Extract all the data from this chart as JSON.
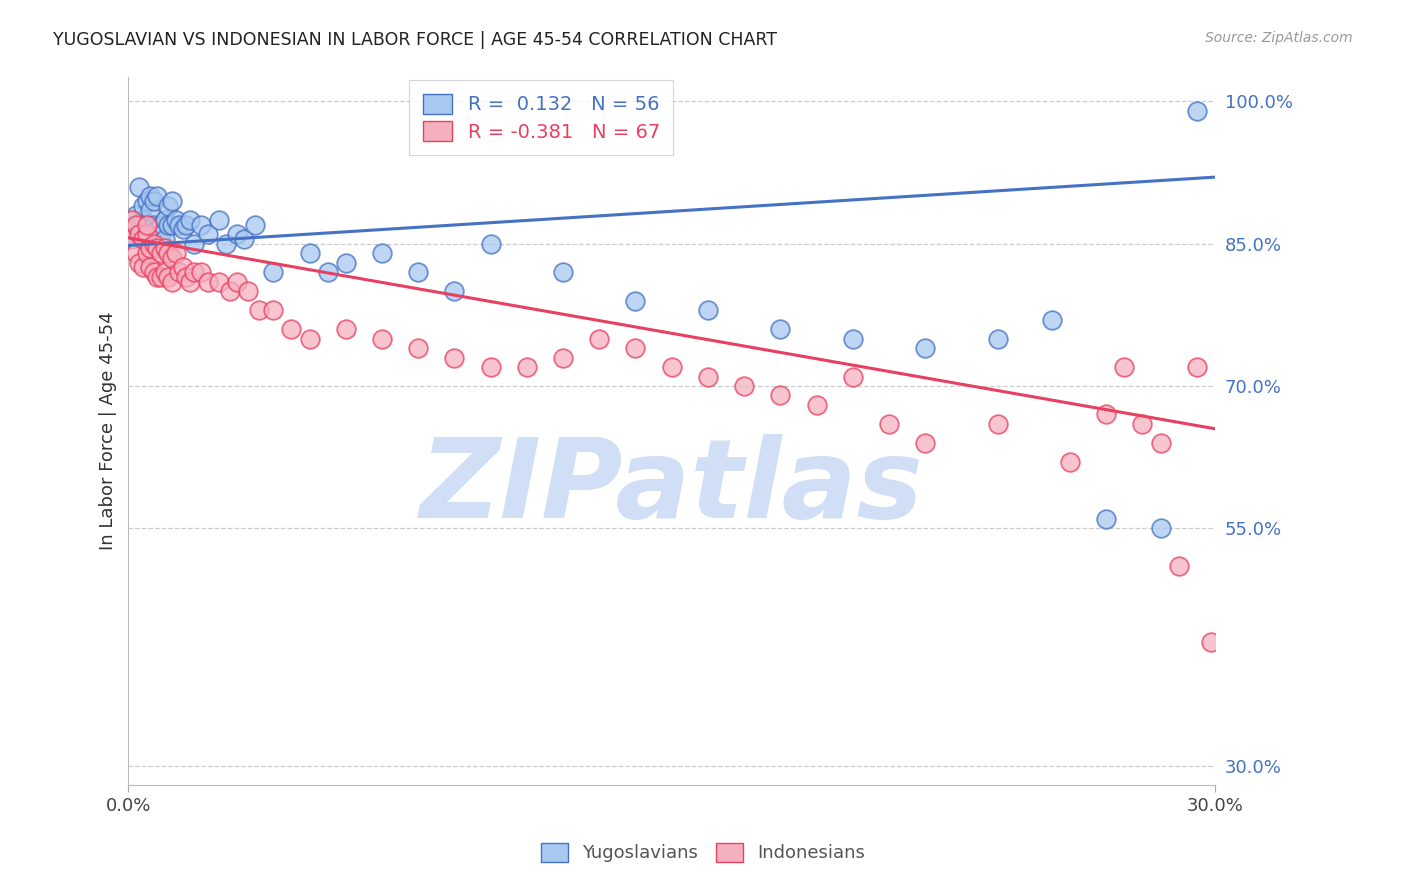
{
  "title": "YUGOSLAVIAN VS INDONESIAN IN LABOR FORCE | AGE 45-54 CORRELATION CHART",
  "source": "Source: ZipAtlas.com",
  "ylabel": "In Labor Force | Age 45-54",
  "xlim": [
    0.0,
    0.3
  ],
  "ylim": [
    0.28,
    1.025
  ],
  "yticks": [
    0.3,
    0.55,
    0.7,
    0.85,
    1.0
  ],
  "ytick_labels": [
    "30.0%",
    "55.0%",
    "70.0%",
    "85.0%",
    "100.0%"
  ],
  "xticks": [
    0.0,
    0.3
  ],
  "xtick_labels": [
    "0.0%",
    "30.0%"
  ],
  "blue_R": 0.132,
  "blue_N": 56,
  "pink_R": -0.381,
  "pink_N": 67,
  "blue_color": "#A8C8F0",
  "pink_color": "#F5B0C0",
  "blue_line_color": "#4472C4",
  "pink_line_color": "#E84060",
  "watermark": "ZIPatlas",
  "watermark_color": "#D0DFF5",
  "background_color": "#FFFFFF",
  "blue_x": [
    0.001,
    0.002,
    0.002,
    0.003,
    0.003,
    0.004,
    0.004,
    0.005,
    0.005,
    0.005,
    0.006,
    0.006,
    0.007,
    0.007,
    0.008,
    0.008,
    0.009,
    0.009,
    0.01,
    0.01,
    0.011,
    0.011,
    0.012,
    0.012,
    0.013,
    0.014,
    0.015,
    0.016,
    0.017,
    0.018,
    0.02,
    0.022,
    0.025,
    0.027,
    0.03,
    0.032,
    0.035,
    0.04,
    0.05,
    0.055,
    0.06,
    0.07,
    0.08,
    0.09,
    0.1,
    0.12,
    0.14,
    0.16,
    0.18,
    0.2,
    0.22,
    0.24,
    0.255,
    0.27,
    0.285,
    0.295
  ],
  "blue_y": [
    0.86,
    0.87,
    0.88,
    0.865,
    0.91,
    0.875,
    0.89,
    0.85,
    0.87,
    0.895,
    0.885,
    0.9,
    0.87,
    0.895,
    0.865,
    0.9,
    0.87,
    0.86,
    0.875,
    0.855,
    0.87,
    0.89,
    0.87,
    0.895,
    0.875,
    0.87,
    0.865,
    0.87,
    0.875,
    0.85,
    0.87,
    0.86,
    0.875,
    0.85,
    0.86,
    0.855,
    0.87,
    0.82,
    0.84,
    0.82,
    0.83,
    0.84,
    0.82,
    0.8,
    0.85,
    0.82,
    0.79,
    0.78,
    0.76,
    0.75,
    0.74,
    0.75,
    0.77,
    0.56,
    0.55,
    0.99
  ],
  "pink_x": [
    0.001,
    0.001,
    0.002,
    0.002,
    0.003,
    0.003,
    0.004,
    0.004,
    0.005,
    0.005,
    0.005,
    0.006,
    0.006,
    0.007,
    0.007,
    0.008,
    0.008,
    0.009,
    0.009,
    0.01,
    0.01,
    0.011,
    0.011,
    0.012,
    0.012,
    0.013,
    0.014,
    0.015,
    0.016,
    0.017,
    0.018,
    0.02,
    0.022,
    0.025,
    0.028,
    0.03,
    0.033,
    0.036,
    0.04,
    0.045,
    0.05,
    0.06,
    0.07,
    0.08,
    0.09,
    0.1,
    0.11,
    0.12,
    0.13,
    0.14,
    0.15,
    0.16,
    0.17,
    0.18,
    0.19,
    0.2,
    0.21,
    0.22,
    0.24,
    0.26,
    0.27,
    0.275,
    0.28,
    0.285,
    0.29,
    0.295,
    0.299
  ],
  "pink_y": [
    0.875,
    0.855,
    0.87,
    0.84,
    0.86,
    0.83,
    0.855,
    0.825,
    0.86,
    0.84,
    0.87,
    0.845,
    0.825,
    0.85,
    0.82,
    0.845,
    0.815,
    0.84,
    0.815,
    0.845,
    0.82,
    0.84,
    0.815,
    0.835,
    0.81,
    0.84,
    0.82,
    0.825,
    0.815,
    0.81,
    0.82,
    0.82,
    0.81,
    0.81,
    0.8,
    0.81,
    0.8,
    0.78,
    0.78,
    0.76,
    0.75,
    0.76,
    0.75,
    0.74,
    0.73,
    0.72,
    0.72,
    0.73,
    0.75,
    0.74,
    0.72,
    0.71,
    0.7,
    0.69,
    0.68,
    0.71,
    0.66,
    0.64,
    0.66,
    0.62,
    0.67,
    0.72,
    0.66,
    0.64,
    0.51,
    0.72,
    0.43
  ],
  "blue_trend_x": [
    0.0,
    0.3
  ],
  "blue_trend_y": [
    0.848,
    0.92
  ],
  "pink_trend_x": [
    0.0,
    0.3
  ],
  "pink_trend_y": [
    0.856,
    0.655
  ]
}
